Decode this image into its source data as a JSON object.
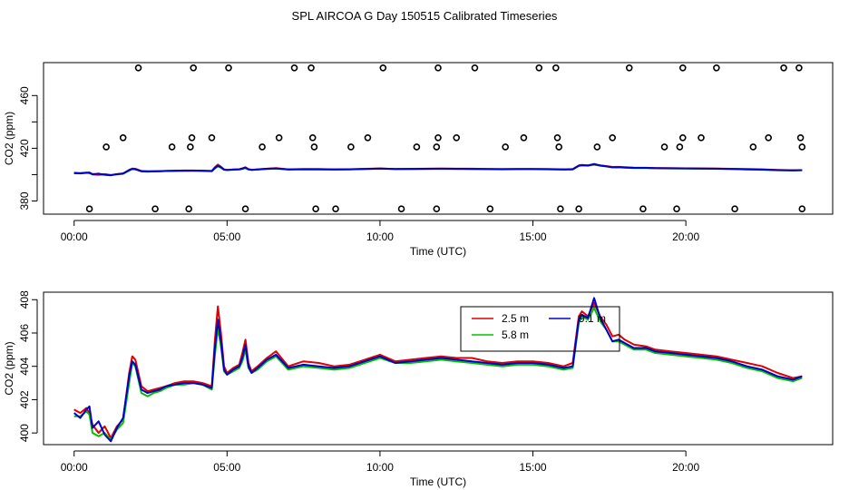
{
  "title": "SPL AIRCOA G  Day 150515  Calibrated Timeseries",
  "colors": {
    "red": "#e00000",
    "green": "#00c000",
    "blue": "#0000cc",
    "black": "#000000"
  },
  "chart_data": [
    {
      "type": "scatter+line",
      "xlabel": "Time (UTC)",
      "ylabel": "CO2 (ppm)",
      "xlim": [
        -1.0,
        24.8
      ],
      "ylim": [
        370,
        485
      ],
      "xticks": [
        0,
        5,
        10,
        15,
        20
      ],
      "xtick_labels": [
        "00:00",
        "05:00",
        "10:00",
        "15:00",
        "20:00"
      ],
      "yticks": [
        380,
        420,
        460
      ],
      "yticks_minor": [
        400,
        440
      ],
      "ytick_labels": [
        "380",
        "420",
        "460"
      ],
      "circles": {
        "y_level_481": [
          2.1,
          3.9,
          5.05,
          7.2,
          7.75,
          10.1,
          11.9,
          13.1,
          15.2,
          15.75,
          18.15,
          19.9,
          21.0,
          23.2,
          23.7
        ],
        "y_level_428": [
          1.6,
          3.85,
          4.5,
          6.7,
          7.8,
          9.6,
          11.9,
          12.5,
          14.7,
          15.8,
          17.6,
          19.9,
          20.5,
          22.7,
          23.75
        ],
        "y_level_421": [
          1.05,
          3.2,
          3.8,
          6.15,
          7.85,
          9.05,
          11.2,
          11.85,
          14.1,
          15.85,
          17.1,
          19.3,
          19.8,
          22.2,
          23.8
        ],
        "y_level_374": [
          0.5,
          2.65,
          3.75,
          5.6,
          7.9,
          8.55,
          10.7,
          11.85,
          13.6,
          15.9,
          16.5,
          18.6,
          19.7,
          21.6,
          23.8
        ]
      },
      "series": [
        {
          "name": "2.5 m",
          "color": "red"
        },
        {
          "name": "5.8 m",
          "color": "green"
        },
        {
          "name": "9.1 m",
          "color": "blue"
        }
      ]
    },
    {
      "type": "line",
      "xlabel": "Time (UTC)",
      "ylabel": "CO2 (ppm)",
      "xlim": [
        -1.0,
        24.8
      ],
      "ylim": [
        399.3,
        408.45
      ],
      "xticks": [
        0,
        5,
        10,
        15,
        20
      ],
      "xtick_labels": [
        "00:00",
        "05:00",
        "10:00",
        "15:00",
        "20:00"
      ],
      "yticks": [
        400,
        402,
        404,
        406,
        408
      ],
      "ytick_labels": [
        "400",
        "402",
        "404",
        "406",
        "408"
      ],
      "legend": {
        "position": "top-right-center",
        "entries": [
          {
            "label": "2.5 m",
            "color": "red"
          },
          {
            "label": "5.8 m",
            "color": "green"
          },
          {
            "label": "9.1 m",
            "color": "blue"
          }
        ]
      },
      "series": [
        {
          "name": "2.5 m",
          "color": "red",
          "x": [
            0,
            0.2,
            0.4,
            0.5,
            0.6,
            0.8,
            1.0,
            1.2,
            1.4,
            1.6,
            1.8,
            1.9,
            2.0,
            2.2,
            2.4,
            2.6,
            2.8,
            3.0,
            3.3,
            3.6,
            3.9,
            4.2,
            4.5,
            4.6,
            4.7,
            4.8,
            4.9,
            5.0,
            5.2,
            5.4,
            5.5,
            5.6,
            5.7,
            5.8,
            6.0,
            6.3,
            6.6,
            7.0,
            7.5,
            8.0,
            8.5,
            9.0,
            9.5,
            10.0,
            10.5,
            11.0,
            11.5,
            12.0,
            12.5,
            13.0,
            13.5,
            14.0,
            14.5,
            15.0,
            15.5,
            16.0,
            16.3,
            16.5,
            16.6,
            16.8,
            17.0,
            17.2,
            17.4,
            17.6,
            17.8,
            18.0,
            18.3,
            18.7,
            19.0,
            19.5,
            20.0,
            20.5,
            21.0,
            21.5,
            22.0,
            22.5,
            23.0,
            23.5,
            23.8
          ],
          "y": [
            401.4,
            401.2,
            401.5,
            401.2,
            400.5,
            400.0,
            400.4,
            399.7,
            400.4,
            400.8,
            403.6,
            404.6,
            404.4,
            402.8,
            402.5,
            402.6,
            402.7,
            402.8,
            403.0,
            403.1,
            403.1,
            403.0,
            402.8,
            405.5,
            407.6,
            406.0,
            404.0,
            403.6,
            403.9,
            404.1,
            404.8,
            405.6,
            404.2,
            403.7,
            404.0,
            404.5,
            404.9,
            404.0,
            404.3,
            404.2,
            404.0,
            404.1,
            404.4,
            404.7,
            404.3,
            404.4,
            404.5,
            404.6,
            404.5,
            404.5,
            404.3,
            404.2,
            404.3,
            404.3,
            404.2,
            404.0,
            404.2,
            407.0,
            407.3,
            407.0,
            407.8,
            407.0,
            406.5,
            405.8,
            405.9,
            405.6,
            405.3,
            405.2,
            405.0,
            404.9,
            404.8,
            404.7,
            404.6,
            404.4,
            404.2,
            404.0,
            403.6,
            403.3,
            403.4
          ]
        },
        {
          "name": "5.8 m",
          "color": "green",
          "x": [
            0,
            0.2,
            0.4,
            0.5,
            0.6,
            0.8,
            1.0,
            1.2,
            1.4,
            1.6,
            1.8,
            1.9,
            2.0,
            2.2,
            2.4,
            2.6,
            2.8,
            3.0,
            3.3,
            3.6,
            3.9,
            4.2,
            4.5,
            4.6,
            4.7,
            4.8,
            4.9,
            5.0,
            5.2,
            5.4,
            5.5,
            5.6,
            5.7,
            5.8,
            6.0,
            6.3,
            6.6,
            7.0,
            7.5,
            8.0,
            8.5,
            9.0,
            9.5,
            10.0,
            10.5,
            11.0,
            11.5,
            12.0,
            12.5,
            13.0,
            13.5,
            14.0,
            14.5,
            15.0,
            15.5,
            16.0,
            16.3,
            16.5,
            16.6,
            16.8,
            17.0,
            17.2,
            17.4,
            17.6,
            17.8,
            18.0,
            18.3,
            18.7,
            19.0,
            19.5,
            20.0,
            20.5,
            21.0,
            21.5,
            22.0,
            22.5,
            23.0,
            23.5,
            23.8
          ],
          "y": [
            401.0,
            401.0,
            401.3,
            401.1,
            400.0,
            399.8,
            400.0,
            399.6,
            400.2,
            400.6,
            403.0,
            404.2,
            404.0,
            402.4,
            402.2,
            402.4,
            402.5,
            402.7,
            402.9,
            402.9,
            403.0,
            402.9,
            402.6,
            404.6,
            406.3,
            405.2,
            403.7,
            403.5,
            403.7,
            403.9,
            404.3,
            405.0,
            403.9,
            403.6,
            403.8,
            404.3,
            404.6,
            403.8,
            404.0,
            403.9,
            403.8,
            403.9,
            404.2,
            404.5,
            404.2,
            404.2,
            404.3,
            404.4,
            404.3,
            404.2,
            404.1,
            404.0,
            404.1,
            404.1,
            404.0,
            403.8,
            403.9,
            406.6,
            407.0,
            406.8,
            407.5,
            406.7,
            406.2,
            405.5,
            405.5,
            405.3,
            405.0,
            405.0,
            404.8,
            404.7,
            404.6,
            404.5,
            404.4,
            404.2,
            403.9,
            403.7,
            403.3,
            403.1,
            403.3
          ]
        },
        {
          "name": "9.1 m",
          "color": "blue",
          "x": [
            0,
            0.2,
            0.4,
            0.5,
            0.6,
            0.8,
            1.0,
            1.2,
            1.4,
            1.6,
            1.8,
            1.9,
            2.0,
            2.2,
            2.4,
            2.6,
            2.8,
            3.0,
            3.3,
            3.6,
            3.9,
            4.2,
            4.5,
            4.6,
            4.7,
            4.8,
            4.9,
            5.0,
            5.2,
            5.4,
            5.5,
            5.6,
            5.7,
            5.8,
            6.0,
            6.3,
            6.6,
            7.0,
            7.5,
            8.0,
            8.5,
            9.0,
            9.5,
            10.0,
            10.5,
            11.0,
            11.5,
            12.0,
            12.5,
            13.0,
            13.5,
            14.0,
            14.5,
            15.0,
            15.5,
            16.0,
            16.3,
            16.5,
            16.6,
            16.8,
            17.0,
            17.2,
            17.4,
            17.6,
            17.8,
            18.0,
            18.3,
            18.7,
            19.0,
            19.5,
            20.0,
            20.5,
            21.0,
            21.5,
            22.0,
            22.5,
            23.0,
            23.5,
            23.8
          ],
          "y": [
            401.2,
            400.9,
            401.4,
            401.6,
            400.3,
            400.7,
            399.9,
            399.5,
            400.3,
            400.9,
            403.4,
            404.3,
            404.1,
            402.6,
            402.4,
            402.5,
            402.6,
            402.8,
            402.9,
            403.0,
            403.0,
            402.9,
            402.7,
            405.0,
            406.8,
            405.5,
            403.8,
            403.5,
            403.8,
            404.0,
            404.5,
            405.3,
            404.0,
            403.6,
            403.9,
            404.4,
            404.7,
            403.9,
            404.1,
            404.0,
            403.9,
            404.0,
            404.3,
            404.6,
            404.2,
            404.3,
            404.4,
            404.5,
            404.4,
            404.3,
            404.2,
            404.1,
            404.2,
            404.2,
            404.1,
            403.9,
            404.0,
            406.8,
            407.1,
            406.9,
            408.1,
            406.9,
            406.2,
            405.5,
            405.6,
            405.4,
            405.1,
            405.1,
            404.9,
            404.8,
            404.7,
            404.6,
            404.5,
            404.3,
            404.0,
            403.8,
            403.4,
            403.2,
            403.4
          ]
        }
      ]
    }
  ]
}
